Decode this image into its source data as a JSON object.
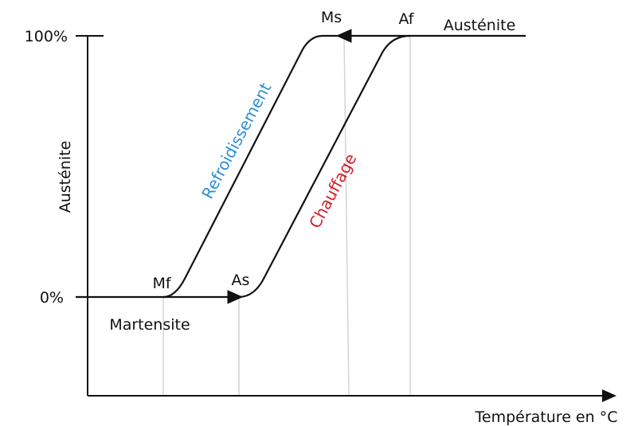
{
  "axes": {
    "y_label": "Austénite",
    "x_label": "Température en °C",
    "y_top": "100%",
    "y_bottom": "0%"
  },
  "points": {
    "ms": "Ms",
    "af": "Af",
    "mf": "Mf",
    "as": "As"
  },
  "phases": {
    "top": "Austénite",
    "bottom": "Martensite"
  },
  "curves": {
    "cooling": "Refroidissement",
    "heating": "Chauffage"
  }
}
